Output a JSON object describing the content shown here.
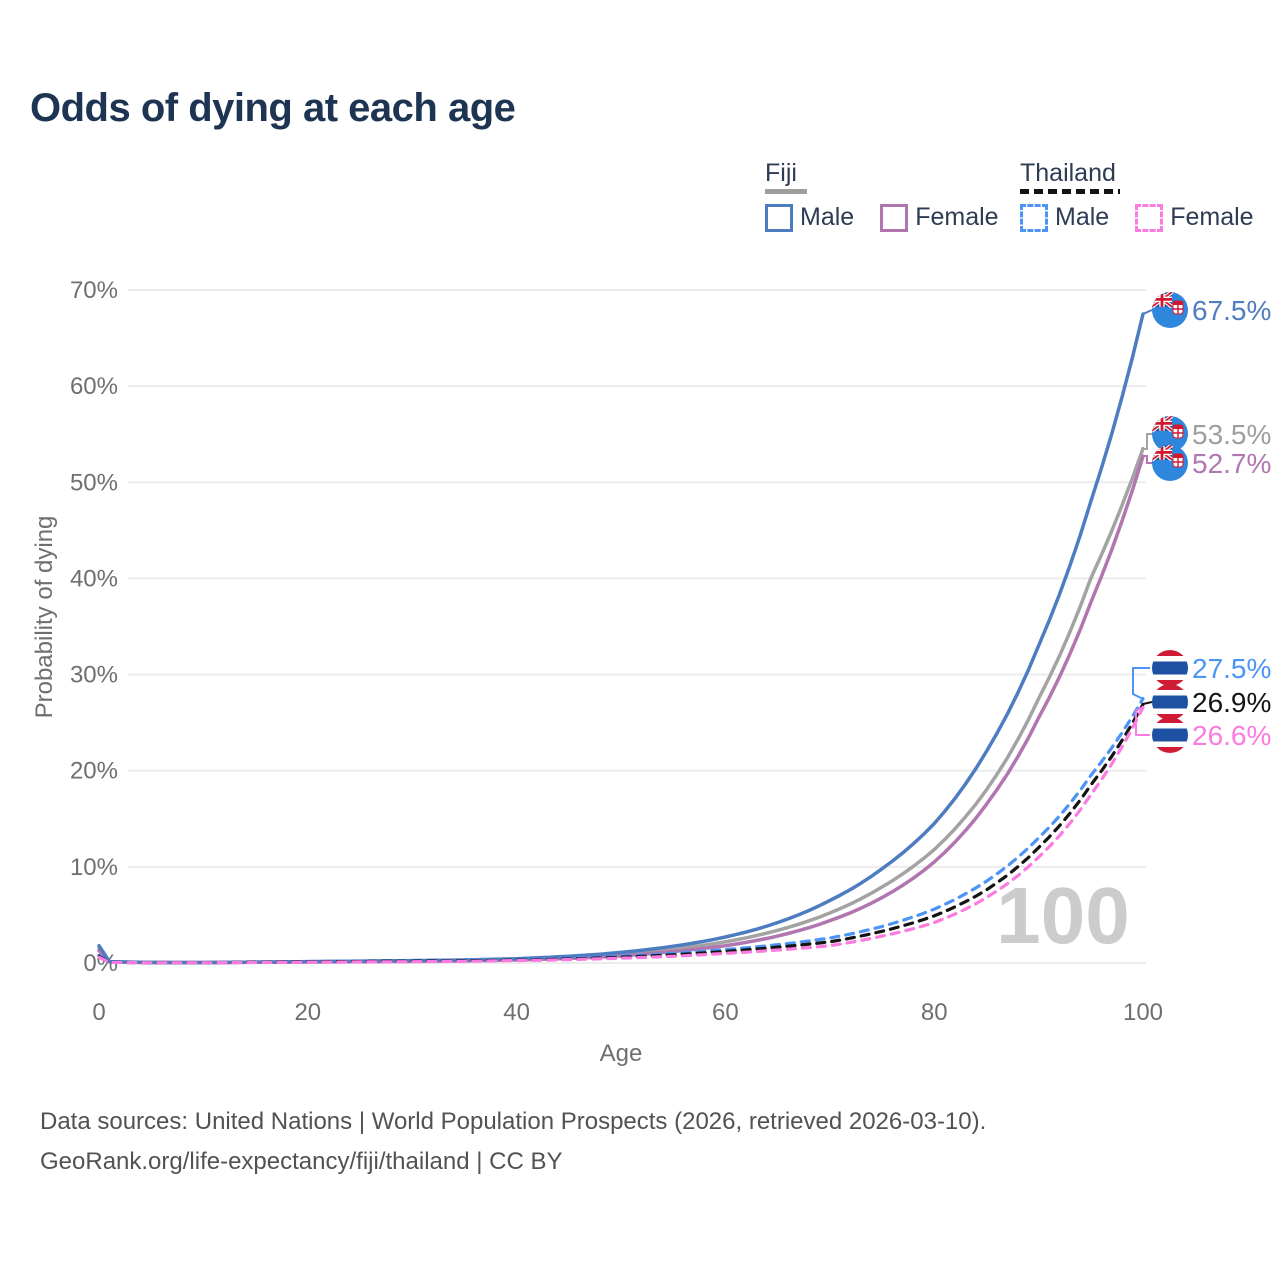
{
  "title": "Odds of dying at each age",
  "watermark": {
    "text": "100",
    "meaning": "current age shown"
  },
  "legend": {
    "groups": [
      {
        "name": "Fiji",
        "line_style": "solid",
        "underline_color": "#9e9e9e",
        "items": [
          {
            "label": "Male",
            "color": "#4d7cc1"
          },
          {
            "label": "Female",
            "color": "#b175af"
          }
        ]
      },
      {
        "name": "Thailand",
        "line_style": "dashed",
        "underline_color": "#141414",
        "items": [
          {
            "label": "Male",
            "color": "#4d94f7"
          },
          {
            "label": "Female",
            "color": "#fb7be0"
          }
        ]
      }
    ]
  },
  "axes": {
    "y_title": "Probability of dying",
    "x_title": "Age"
  },
  "chart_data": {
    "type": "line",
    "title": "Odds of dying at each age",
    "xlabel": "Age",
    "ylabel": "Probability of dying",
    "xlim": [
      0,
      100
    ],
    "ylim_pct": [
      0,
      70
    ],
    "x_ticks": [
      0,
      20,
      40,
      60,
      80,
      100
    ],
    "y_ticks_pct": [
      0,
      10,
      20,
      30,
      40,
      50,
      60,
      70
    ],
    "grid": "horizontal",
    "legend_position": "top-right",
    "ages": [
      0,
      1,
      5,
      10,
      15,
      20,
      25,
      30,
      35,
      40,
      45,
      50,
      55,
      60,
      65,
      70,
      75,
      80,
      85,
      90,
      95,
      100
    ],
    "series": [
      {
        "name": "Fiji Total",
        "country": "Fiji",
        "sex": "Total",
        "line": "solid",
        "color": "#a3a3a3",
        "label_color": "#9e9e9e",
        "flag": "fiji",
        "end_label": "53.5%",
        "end_value_pct": 53.5,
        "values_pct": [
          1.55,
          0.13,
          0.05,
          0.045,
          0.08,
          0.12,
          0.16,
          0.2,
          0.26,
          0.38,
          0.58,
          0.9,
          1.45,
          2.2,
          3.4,
          5.2,
          7.9,
          11.8,
          18.0,
          27.5,
          40.0,
          53.5
        ]
      },
      {
        "name": "Fiji Female",
        "country": "Fiji",
        "sex": "Female",
        "line": "solid",
        "color": "#b175af",
        "label_color": "#b276b0",
        "flag": "fiji",
        "end_label": "52.7%",
        "end_value_pct": 52.7,
        "values_pct": [
          1.3,
          0.11,
          0.045,
          0.04,
          0.07,
          0.1,
          0.13,
          0.17,
          0.22,
          0.32,
          0.48,
          0.75,
          1.2,
          1.8,
          2.8,
          4.4,
          6.8,
          10.5,
          16.5,
          25.5,
          37.5,
          52.7
        ]
      },
      {
        "name": "Fiji Male",
        "country": "Fiji",
        "sex": "Male",
        "line": "solid",
        "color": "#4d7cc1",
        "label_color": "#4f7dc0",
        "flag": "fiji",
        "end_label": "67.5%",
        "end_value_pct": 67.5,
        "values_pct": [
          1.8,
          0.15,
          0.06,
          0.05,
          0.1,
          0.15,
          0.2,
          0.25,
          0.32,
          0.45,
          0.7,
          1.1,
          1.75,
          2.7,
          4.2,
          6.5,
          9.8,
          14.5,
          22.0,
          33.0,
          48.0,
          67.5
        ]
      },
      {
        "name": "Thailand Male",
        "country": "Thailand",
        "sex": "Male",
        "line": "dashed",
        "color": "#4d94f7",
        "label_color": "#4d94f7",
        "flag": "thailand",
        "end_label": "27.5%",
        "end_value_pct": 27.5,
        "values_pct": [
          0.8,
          0.08,
          0.04,
          0.04,
          0.1,
          0.15,
          0.2,
          0.25,
          0.3,
          0.35,
          0.5,
          0.7,
          1.0,
          1.4,
          1.9,
          2.6,
          3.8,
          5.6,
          8.5,
          13.0,
          19.5,
          27.5
        ]
      },
      {
        "name": "Thailand Total",
        "country": "Thailand",
        "sex": "Total",
        "line": "dashed",
        "color": "#141414",
        "label_color": "#141414",
        "flag": "thailand",
        "end_label": "26.9%",
        "end_value_pct": 26.9,
        "values_pct": [
          0.7,
          0.07,
          0.035,
          0.035,
          0.08,
          0.12,
          0.16,
          0.2,
          0.24,
          0.3,
          0.42,
          0.6,
          0.85,
          1.2,
          1.65,
          2.2,
          3.3,
          4.9,
          7.6,
          12.0,
          18.5,
          26.9
        ]
      },
      {
        "name": "Thailand Female",
        "country": "Thailand",
        "sex": "Female",
        "line": "dashed",
        "color": "#fb7be0",
        "label_color": "#fb7be0",
        "flag": "thailand",
        "end_label": "26.6%",
        "end_value_pct": 26.6,
        "values_pct": [
          0.6,
          0.06,
          0.03,
          0.03,
          0.05,
          0.08,
          0.11,
          0.14,
          0.18,
          0.25,
          0.35,
          0.5,
          0.7,
          1.0,
          1.35,
          1.8,
          2.8,
          4.2,
          6.8,
          11.0,
          17.5,
          26.6
        ]
      }
    ],
    "age_watermark": "100"
  },
  "footer": {
    "line1": "Data sources: United Nations | World Population Prospects (2026, retrieved 2026-03-10).",
    "line2": "GeoRank.org/life-expectancy/fiji/thailand | CC BY"
  },
  "colors": {
    "title": "#1d3452",
    "legend_text": "#2d3c53",
    "axis_text": "#6f6f6f",
    "gridline": "#ececec",
    "watermark": "#cccccc",
    "footer_text": "#525252",
    "fiji_male": "#4d7cc1",
    "fiji_female": "#b175af",
    "fiji_total": "#a3a3a3",
    "thailand_male": "#4d94f7",
    "thailand_female": "#fb7be0",
    "thailand_total": "#141414"
  }
}
